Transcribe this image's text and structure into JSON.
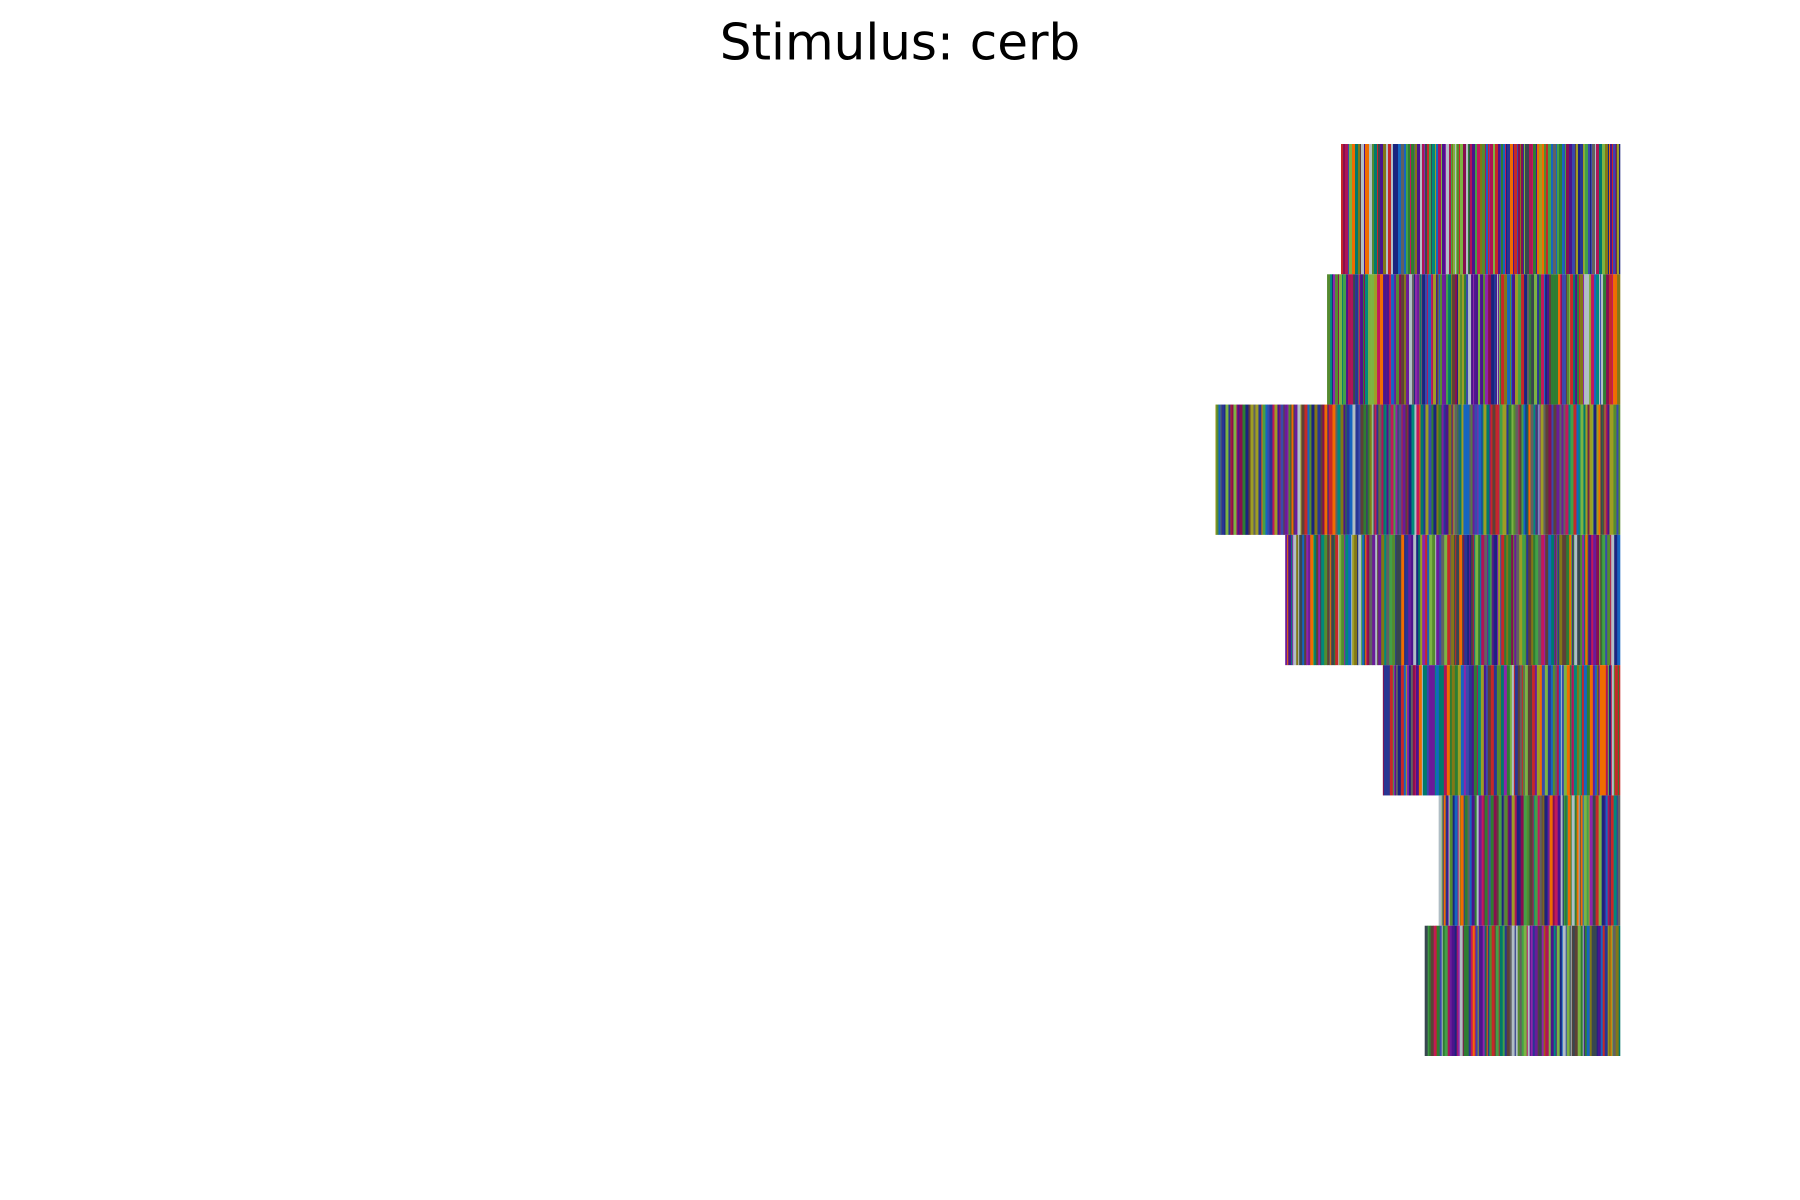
{
  "chart_data": {
    "type": "barh",
    "title": "Stimulus: cerb",
    "values": [
      0.2,
      0.21,
      0.29,
      0.24,
      0.17,
      0.13,
      0.14
    ],
    "xlim": [
      0,
      1
    ],
    "align": "right",
    "colors": [
      "#2e7d32",
      "#6a1b9a",
      "#1a237e",
      "#c2185b",
      "#00796b",
      "#827717",
      "#616161",
      "#c62828",
      "#ef6c00",
      "#1565c0",
      "#558b2f",
      "#4a148c",
      "#37474f",
      "#8e24aa",
      "#00897b",
      "#9e9d24",
      "#ad1457",
      "#283593",
      "#5d4037",
      "#7cb342",
      "#b0bec5",
      "#3949ab",
      "#43a047",
      "#880e4f"
    ]
  }
}
